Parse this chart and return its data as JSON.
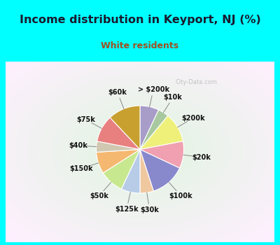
{
  "title": "Income distribution in Keyport, NJ (%)",
  "subtitle": "White residents",
  "title_color": "#1a1a2e",
  "subtitle_color": "#a05020",
  "background_cyan": "#00ffff",
  "slices": [
    {
      "label": "> $200k",
      "value": 7,
      "color": "#a89cc8"
    },
    {
      "label": "$10k",
      "value": 4,
      "color": "#a8c8a0"
    },
    {
      "label": "$200k",
      "value": 11,
      "color": "#eef07a"
    },
    {
      "label": "$20k",
      "value": 10,
      "color": "#f0a0b0"
    },
    {
      "label": "$100k",
      "value": 13,
      "color": "#8888cc"
    },
    {
      "label": "$30k",
      "value": 5,
      "color": "#f0c8a0"
    },
    {
      "label": "$125k",
      "value": 7,
      "color": "#b8cce8"
    },
    {
      "label": "$50k",
      "value": 9,
      "color": "#c8e890"
    },
    {
      "label": "$150k",
      "value": 8,
      "color": "#f5b870"
    },
    {
      "label": "$40k",
      "value": 4,
      "color": "#d0c8b0"
    },
    {
      "label": "$75k",
      "value": 10,
      "color": "#e88080"
    },
    {
      "label": "$60k",
      "value": 12,
      "color": "#c8a030"
    }
  ],
  "watermark": "City-Data.com",
  "title_fontsize": 11.5,
  "subtitle_fontsize": 9,
  "label_fontsize": 7
}
